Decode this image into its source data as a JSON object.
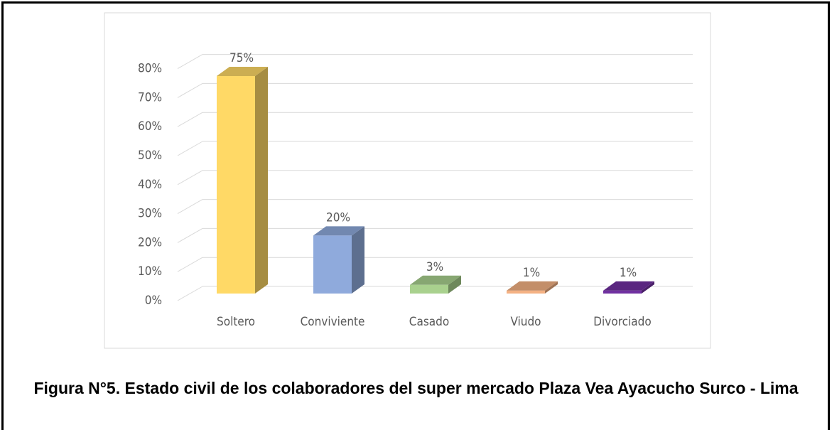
{
  "chart_data": {
    "type": "bar3d",
    "title": "Figura N°5. Estado civil de los colaboradores del super mercado Plaza Vea Ayacucho Surco - Lima",
    "categories": [
      "Soltero",
      "Conviviente",
      "Casado",
      "Viudo",
      "Divorciado"
    ],
    "values": [
      75,
      20,
      3,
      1,
      1
    ],
    "value_labels": [
      "75%",
      "20%",
      "3%",
      "1%",
      "1%"
    ],
    "colors": [
      "#ffd966",
      "#8faadc",
      "#a9d18e",
      "#f4b183",
      "#7030a0"
    ],
    "ylim": [
      0,
      80
    ],
    "yticks": [
      {
        "value": 0,
        "label": "0%"
      },
      {
        "value": 10,
        "label": "10%"
      },
      {
        "value": 20,
        "label": "20%"
      },
      {
        "value": 30,
        "label": "30%"
      },
      {
        "value": 40,
        "label": "40%"
      },
      {
        "value": 50,
        "label": "50%"
      },
      {
        "value": 60,
        "label": "60%"
      },
      {
        "value": 70,
        "label": "70%"
      },
      {
        "value": 80,
        "label": "80%"
      }
    ],
    "grid": true
  }
}
